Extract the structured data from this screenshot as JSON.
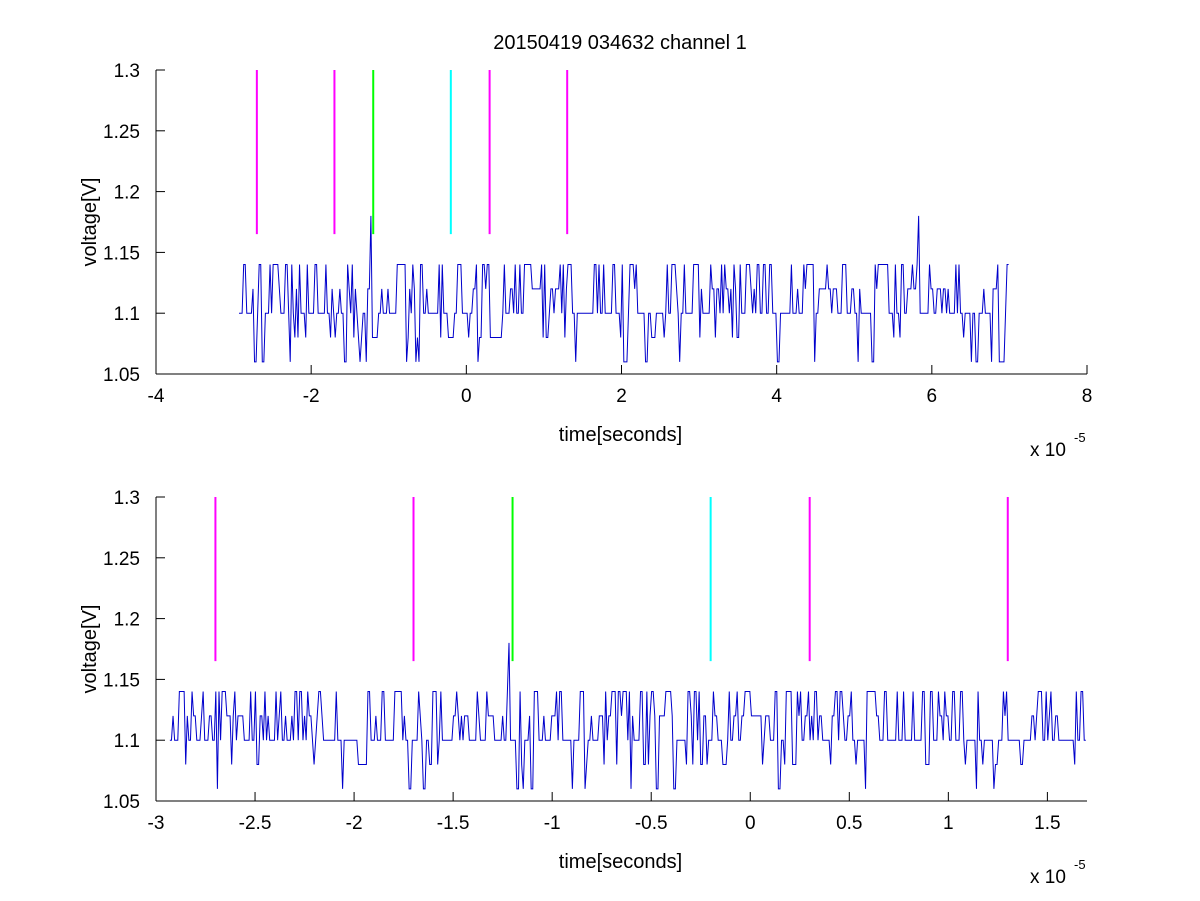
{
  "figure": {
    "title": "20150419 034632 channel 1"
  },
  "chart_data": [
    {
      "type": "line",
      "title": "20150419 034632 channel 1",
      "xlabel": "time[seconds]",
      "ylabel": "voltage[V]",
      "x_multiplier": "x 10",
      "x_exponent": "-5",
      "xlim": [
        -4,
        8
      ],
      "ylim": [
        1.05,
        1.3
      ],
      "xticks": [
        -4,
        -2,
        0,
        2,
        4,
        6,
        8
      ],
      "xtick_labels": [
        "-4",
        "-2",
        "0",
        "2",
        "4",
        "6",
        "8"
      ],
      "yticks": [
        1.05,
        1.1,
        1.15,
        1.2,
        1.25,
        1.3
      ],
      "ytick_labels": [
        "1.05",
        "1.1",
        "1.15",
        "1.2",
        "1.25",
        "1.3"
      ],
      "grid": false,
      "signal": {
        "color": "#0000cc",
        "x_range": [
          -2.93,
          7.0
        ],
        "levels": [
          1.06,
          1.08,
          1.1,
          1.12,
          1.14
        ],
        "spikes": [
          [
            -1.22,
            1.18
          ],
          [
            5.83,
            1.18
          ]
        ]
      },
      "markers": [
        {
          "x": -2.7,
          "y0": 1.165,
          "y1": 1.3,
          "color": "#ff00ff"
        },
        {
          "x": -1.7,
          "y0": 1.165,
          "y1": 1.3,
          "color": "#ff00ff"
        },
        {
          "x": -1.2,
          "y0": 1.165,
          "y1": 1.3,
          "color": "#00ff00"
        },
        {
          "x": -0.2,
          "y0": 1.165,
          "y1": 1.3,
          "color": "#00ffff"
        },
        {
          "x": 0.3,
          "y0": 1.165,
          "y1": 1.3,
          "color": "#ff00ff"
        },
        {
          "x": 1.3,
          "y0": 1.165,
          "y1": 1.3,
          "color": "#ff00ff"
        }
      ]
    },
    {
      "type": "line",
      "xlabel": "time[seconds]",
      "ylabel": "voltage[V]",
      "x_multiplier": "x 10",
      "x_exponent": "-5",
      "xlim": [
        -3.0,
        1.7
      ],
      "ylim": [
        1.05,
        1.3
      ],
      "xticks": [
        -3,
        -2.5,
        -2,
        -1.5,
        -1,
        -0.5,
        0,
        0.5,
        1,
        1.5
      ],
      "xtick_labels": [
        "-3",
        "-2.5",
        "-2",
        "-1.5",
        "-1",
        "-0.5",
        "0",
        "0.5",
        "1",
        "1.5"
      ],
      "yticks": [
        1.05,
        1.1,
        1.15,
        1.2,
        1.25,
        1.3
      ],
      "ytick_labels": [
        "1.05",
        "1.1",
        "1.15",
        "1.2",
        "1.25",
        "1.3"
      ],
      "grid": false,
      "signal": {
        "color": "#0000cc",
        "x_range": [
          -2.93,
          1.7
        ],
        "levels": [
          1.06,
          1.08,
          1.1,
          1.12,
          1.14
        ],
        "spikes": [
          [
            -1.22,
            1.18
          ]
        ]
      },
      "markers": [
        {
          "x": -2.7,
          "y0": 1.165,
          "y1": 1.3,
          "color": "#ff00ff"
        },
        {
          "x": -1.7,
          "y0": 1.165,
          "y1": 1.3,
          "color": "#ff00ff"
        },
        {
          "x": -1.2,
          "y0": 1.165,
          "y1": 1.3,
          "color": "#00ff00"
        },
        {
          "x": -0.2,
          "y0": 1.165,
          "y1": 1.3,
          "color": "#00ffff"
        },
        {
          "x": 0.3,
          "y0": 1.165,
          "y1": 1.3,
          "color": "#ff00ff"
        },
        {
          "x": 1.3,
          "y0": 1.165,
          "y1": 1.3,
          "color": "#ff00ff"
        }
      ]
    }
  ]
}
